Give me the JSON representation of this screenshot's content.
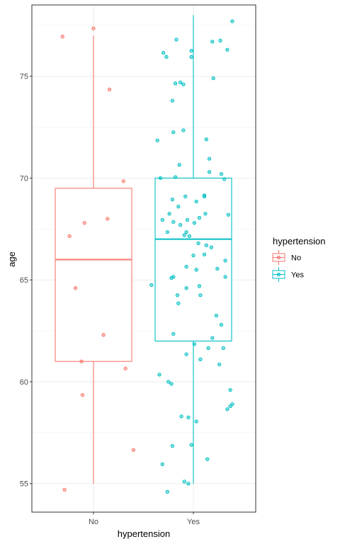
{
  "chart_data": {
    "type": "boxplot",
    "xlabel": "hypertension",
    "ylabel": "age",
    "ylim": [
      53.6,
      78.5
    ],
    "yticks": [
      55,
      60,
      65,
      70,
      75
    ],
    "categories": [
      "No",
      "Yes"
    ],
    "grid": true,
    "legend": {
      "title": "hypertension",
      "position": "right",
      "entries": [
        "No",
        "Yes"
      ]
    },
    "colors": {
      "No": "#F8766D",
      "Yes": "#00BFC4"
    },
    "boxes": [
      {
        "category": "No",
        "min": 55,
        "q1": 61,
        "median": 66,
        "q3": 69.5,
        "max": 77
      },
      {
        "category": "Yes",
        "min": 55,
        "q1": 62,
        "median": 67,
        "q3": 70,
        "max": 78
      }
    ],
    "points": [
      {
        "category": "No",
        "jitter": -0.31,
        "y": 76.95
      },
      {
        "category": "No",
        "jitter": 0.0,
        "y": 77.35
      },
      {
        "category": "No",
        "jitter": 0.16,
        "y": 74.35
      },
      {
        "category": "No",
        "jitter": 0.3,
        "y": 69.85
      },
      {
        "category": "No",
        "jitter": 0.14,
        "y": 68.0
      },
      {
        "category": "No",
        "jitter": -0.09,
        "y": 67.8
      },
      {
        "category": "No",
        "jitter": -0.24,
        "y": 67.15
      },
      {
        "category": "No",
        "jitter": -0.18,
        "y": 64.6
      },
      {
        "category": "No",
        "jitter": 0.1,
        "y": 62.3
      },
      {
        "category": "No",
        "jitter": -0.12,
        "y": 61.0
      },
      {
        "category": "No",
        "jitter": 0.32,
        "y": 60.65
      },
      {
        "category": "No",
        "jitter": -0.11,
        "y": 59.35
      },
      {
        "category": "No",
        "jitter": 0.4,
        "y": 56.65
      },
      {
        "category": "No",
        "jitter": -0.29,
        "y": 54.7
      },
      {
        "category": "Yes",
        "jitter": 0.39,
        "y": 77.7
      },
      {
        "category": "Yes",
        "jitter": -0.17,
        "y": 76.8
      },
      {
        "category": "Yes",
        "jitter": 0.19,
        "y": 76.7
      },
      {
        "category": "Yes",
        "jitter": 0.27,
        "y": 76.75
      },
      {
        "category": "Yes",
        "jitter": -0.3,
        "y": 76.15
      },
      {
        "category": "Yes",
        "jitter": -0.27,
        "y": 75.95
      },
      {
        "category": "Yes",
        "jitter": -0.02,
        "y": 76.25
      },
      {
        "category": "Yes",
        "jitter": -0.02,
        "y": 75.95
      },
      {
        "category": "Yes",
        "jitter": 0.34,
        "y": 76.3
      },
      {
        "category": "Yes",
        "jitter": -0.18,
        "y": 74.65
      },
      {
        "category": "Yes",
        "jitter": -0.13,
        "y": 74.7
      },
      {
        "category": "Yes",
        "jitter": -0.1,
        "y": 74.6
      },
      {
        "category": "Yes",
        "jitter": 0.2,
        "y": 74.9
      },
      {
        "category": "Yes",
        "jitter": -0.21,
        "y": 73.8
      },
      {
        "category": "Yes",
        "jitter": -0.2,
        "y": 72.25
      },
      {
        "category": "Yes",
        "jitter": -0.1,
        "y": 72.35
      },
      {
        "category": "Yes",
        "jitter": -0.36,
        "y": 71.85
      },
      {
        "category": "Yes",
        "jitter": 0.13,
        "y": 71.9
      },
      {
        "category": "Yes",
        "jitter": 0.16,
        "y": 70.95
      },
      {
        "category": "Yes",
        "jitter": -0.14,
        "y": 70.65
      },
      {
        "category": "Yes",
        "jitter": 0.16,
        "y": 70.3
      },
      {
        "category": "Yes",
        "jitter": 0.28,
        "y": 70.2
      },
      {
        "category": "Yes",
        "jitter": -0.33,
        "y": 70.0
      },
      {
        "category": "Yes",
        "jitter": -0.18,
        "y": 70.05
      },
      {
        "category": "Yes",
        "jitter": 0.31,
        "y": 69.95
      },
      {
        "category": "Yes",
        "jitter": -0.21,
        "y": 68.95
      },
      {
        "category": "Yes",
        "jitter": -0.08,
        "y": 69.1
      },
      {
        "category": "Yes",
        "jitter": 0.11,
        "y": 69.1
      },
      {
        "category": "Yes",
        "jitter": 0.11,
        "y": 69.15
      },
      {
        "category": "Yes",
        "jitter": 0.03,
        "y": 68.85
      },
      {
        "category": "Yes",
        "jitter": -0.15,
        "y": 68.6
      },
      {
        "category": "Yes",
        "jitter": 0.35,
        "y": 68.2
      },
      {
        "category": "Yes",
        "jitter": 0.12,
        "y": 68.25
      },
      {
        "category": "Yes",
        "jitter": -0.24,
        "y": 68.25
      },
      {
        "category": "Yes",
        "jitter": -0.31,
        "y": 67.95
      },
      {
        "category": "Yes",
        "jitter": -0.2,
        "y": 67.85
      },
      {
        "category": "Yes",
        "jitter": -0.06,
        "y": 67.95
      },
      {
        "category": "Yes",
        "jitter": 0.01,
        "y": 67.8
      },
      {
        "category": "Yes",
        "jitter": 0.06,
        "y": 68.05
      },
      {
        "category": "Yes",
        "jitter": -0.13,
        "y": 67.7
      },
      {
        "category": "Yes",
        "jitter": -0.26,
        "y": 67.35
      },
      {
        "category": "Yes",
        "jitter": -0.07,
        "y": 67.35
      },
      {
        "category": "Yes",
        "jitter": -0.09,
        "y": 67.2
      },
      {
        "category": "Yes",
        "jitter": -0.04,
        "y": 67.15
      },
      {
        "category": "Yes",
        "jitter": 0.05,
        "y": 66.8
      },
      {
        "category": "Yes",
        "jitter": 0.13,
        "y": 66.7
      },
      {
        "category": "Yes",
        "jitter": 0.18,
        "y": 66.6
      },
      {
        "category": "Yes",
        "jitter": 0.0,
        "y": 66.2
      },
      {
        "category": "Yes",
        "jitter": 0.11,
        "y": 66.25
      },
      {
        "category": "Yes",
        "jitter": 0.32,
        "y": 65.95
      },
      {
        "category": "Yes",
        "jitter": -0.42,
        "y": 64.75
      },
      {
        "category": "Yes",
        "jitter": -0.22,
        "y": 65.1
      },
      {
        "category": "Yes",
        "jitter": -0.2,
        "y": 65.15
      },
      {
        "category": "Yes",
        "jitter": -0.07,
        "y": 65.65
      },
      {
        "category": "Yes",
        "jitter": 0.03,
        "y": 65.5
      },
      {
        "category": "Yes",
        "jitter": 0.24,
        "y": 65.55
      },
      {
        "category": "Yes",
        "jitter": 0.32,
        "y": 65.15
      },
      {
        "category": "Yes",
        "jitter": -0.16,
        "y": 64.25
      },
      {
        "category": "Yes",
        "jitter": -0.07,
        "y": 64.6
      },
      {
        "category": "Yes",
        "jitter": 0.06,
        "y": 64.7
      },
      {
        "category": "Yes",
        "jitter": 0.07,
        "y": 64.25
      },
      {
        "category": "Yes",
        "jitter": -0.15,
        "y": 63.85
      },
      {
        "category": "Yes",
        "jitter": 0.23,
        "y": 63.25
      },
      {
        "category": "Yes",
        "jitter": 0.28,
        "y": 62.8
      },
      {
        "category": "Yes",
        "jitter": -0.2,
        "y": 62.35
      },
      {
        "category": "Yes",
        "jitter": 0.19,
        "y": 62.15
      },
      {
        "category": "Yes",
        "jitter": 0.01,
        "y": 61.85
      },
      {
        "category": "Yes",
        "jitter": 0.15,
        "y": 61.65
      },
      {
        "category": "Yes",
        "jitter": 0.3,
        "y": 61.65
      },
      {
        "category": "Yes",
        "jitter": -0.07,
        "y": 61.35
      },
      {
        "category": "Yes",
        "jitter": 0.07,
        "y": 61.1
      },
      {
        "category": "Yes",
        "jitter": 0.26,
        "y": 60.85
      },
      {
        "category": "Yes",
        "jitter": -0.34,
        "y": 60.35
      },
      {
        "category": "Yes",
        "jitter": -0.25,
        "y": 60.0
      },
      {
        "category": "Yes",
        "jitter": -0.22,
        "y": 59.9
      },
      {
        "category": "Yes",
        "jitter": 0.37,
        "y": 59.6
      },
      {
        "category": "Yes",
        "jitter": 0.39,
        "y": 58.9
      },
      {
        "category": "Yes",
        "jitter": 0.37,
        "y": 58.8
      },
      {
        "category": "Yes",
        "jitter": 0.34,
        "y": 58.65
      },
      {
        "category": "Yes",
        "jitter": -0.12,
        "y": 58.3
      },
      {
        "category": "Yes",
        "jitter": -0.05,
        "y": 58.25
      },
      {
        "category": "Yes",
        "jitter": 0.03,
        "y": 58.05
      },
      {
        "category": "Yes",
        "jitter": -0.21,
        "y": 56.85
      },
      {
        "category": "Yes",
        "jitter": -0.02,
        "y": 56.9
      },
      {
        "category": "Yes",
        "jitter": 0.14,
        "y": 56.2
      },
      {
        "category": "Yes",
        "jitter": -0.31,
        "y": 55.95
      },
      {
        "category": "Yes",
        "jitter": -0.09,
        "y": 55.1
      },
      {
        "category": "Yes",
        "jitter": -0.05,
        "y": 55.0
      },
      {
        "category": "Yes",
        "jitter": -0.26,
        "y": 54.6
      }
    ]
  }
}
